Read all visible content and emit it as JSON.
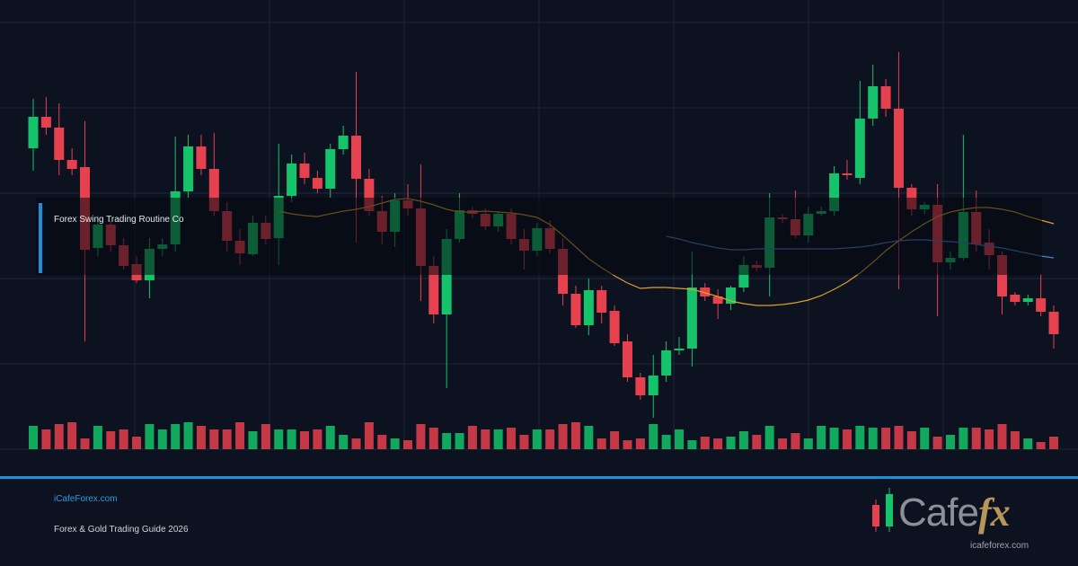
{
  "chart_data": {
    "type": "candlestick",
    "ylim": [
      0,
      500
    ],
    "y2lim": [
      0,
      40
    ],
    "grid": true,
    "up_color": "#14c36a",
    "down_color": "#e6414e",
    "open": [
      335,
      370,
      358,
      322,
      314,
      224,
      250,
      227,
      206,
      188,
      223,
      228,
      287,
      337,
      312,
      265,
      232,
      217,
      252,
      235,
      282,
      318,
      302,
      290,
      334,
      349,
      301,
      265,
      242,
      277,
      268,
      204,
      150,
      234,
      266,
      262,
      248,
      262,
      234,
      221,
      246,
      223,
      173,
      138,
      177,
      154,
      120,
      80,
      60,
      82,
      110,
      112,
      180,
      170,
      162,
      180,
      205,
      202,
      258,
      256,
      238,
      262,
      265,
      307,
      302,
      368,
      404,
      379,
      291,
      267,
      272,
      208,
      213,
      264,
      230,
      216,
      172,
      164,
      168,
      153
    ],
    "high": [
      390,
      392,
      385,
      335,
      365,
      260,
      255,
      235,
      215,
      235,
      235,
      348,
      350,
      350,
      352,
      275,
      245,
      260,
      260,
      340,
      328,
      330,
      310,
      340,
      360,
      420,
      312,
      282,
      285,
      295,
      317,
      215,
      245,
      285,
      270,
      268,
      265,
      268,
      245,
      252,
      255,
      235,
      182,
      190,
      182,
      160,
      128,
      85,
      105,
      120,
      125,
      220,
      185,
      178,
      182,
      215,
      210,
      285,
      262,
      288,
      270,
      270,
      315,
      322,
      410,
      428,
      412,
      442,
      295,
      275,
      295,
      220,
      350,
      288,
      245,
      220,
      175,
      172,
      195,
      160
    ],
    "low": [
      310,
      350,
      305,
      305,
      120,
      215,
      220,
      200,
      185,
      168,
      215,
      220,
      280,
      305,
      260,
      220,
      205,
      215,
      228,
      205,
      275,
      295,
      285,
      280,
      328,
      230,
      260,
      228,
      225,
      260,
      165,
      140,
      68,
      230,
      257,
      244,
      242,
      228,
      200,
      215,
      218,
      160,
      135,
      127,
      140,
      115,
      75,
      55,
      35,
      75,
      105,
      92,
      165,
      145,
      155,
      175,
      198,
      170,
      252,
      235,
      230,
      260,
      260,
      300,
      295,
      360,
      370,
      178,
      260,
      262,
      148,
      200,
      210,
      220,
      200,
      150,
      160,
      160,
      148,
      112
    ],
    "close": [
      370,
      358,
      322,
      312,
      222,
      250,
      227,
      204,
      188,
      223,
      228,
      287,
      337,
      312,
      265,
      232,
      218,
      252,
      234,
      282,
      318,
      302,
      290,
      334,
      349,
      301,
      265,
      242,
      277,
      268,
      204,
      150,
      234,
      266,
      262,
      248,
      262,
      234,
      221,
      246,
      223,
      173,
      138,
      177,
      152,
      118,
      80,
      60,
      82,
      110,
      112,
      180,
      170,
      162,
      180,
      205,
      202,
      258,
      256,
      238,
      262,
      265,
      307,
      305,
      368,
      404,
      379,
      291,
      267,
      272,
      208,
      213,
      264,
      228,
      216,
      170,
      164,
      168,
      153,
      128
    ],
    "volume": [
      26,
      22,
      28,
      30,
      12,
      26,
      20,
      22,
      14,
      28,
      22,
      28,
      30,
      26,
      22,
      22,
      30,
      20,
      28,
      22,
      22,
      20,
      22,
      26,
      16,
      12,
      30,
      16,
      12,
      10,
      28,
      24,
      18,
      18,
      26,
      22,
      22,
      24,
      16,
      22,
      22,
      28,
      30,
      26,
      12,
      20,
      10,
      12,
      28,
      16,
      22,
      10,
      14,
      12,
      14,
      20,
      16,
      26,
      12,
      18,
      12,
      26,
      24,
      22,
      26,
      24,
      24,
      26,
      20,
      24,
      14,
      16,
      24,
      24,
      22,
      28,
      20,
      12,
      8,
      14
    ],
    "series": [
      {
        "color": "#d9a22b",
        "values": [
          null,
          null,
          null,
          null,
          null,
          null,
          null,
          null,
          null,
          null,
          null,
          null,
          null,
          null,
          null,
          null,
          null,
          null,
          null,
          265,
          262,
          260,
          259,
          262,
          265,
          267,
          270,
          274,
          278,
          279,
          276,
          272,
          267,
          264,
          264,
          265,
          264,
          263,
          261,
          258,
          250,
          238,
          225,
          212,
          202,
          193,
          185,
          179,
          180,
          180,
          179,
          178,
          174,
          170,
          165,
          162,
          160,
          160,
          161,
          163,
          166,
          171,
          178,
          186,
          196,
          208,
          221,
          232,
          242,
          251,
          259,
          264,
          267,
          269,
          269,
          267,
          264,
          259,
          255,
          251
        ]
      },
      {
        "color": "#4a86c8",
        "values": [
          null,
          null,
          null,
          null,
          null,
          null,
          null,
          null,
          null,
          null,
          null,
          null,
          null,
          null,
          null,
          null,
          null,
          null,
          null,
          null,
          null,
          null,
          null,
          null,
          null,
          null,
          null,
          null,
          null,
          null,
          null,
          null,
          null,
          null,
          null,
          null,
          null,
          null,
          null,
          null,
          null,
          null,
          null,
          null,
          null,
          null,
          null,
          null,
          null,
          237,
          234,
          230,
          227,
          224,
          222,
          222,
          223,
          223,
          223,
          223,
          223,
          223,
          223,
          224,
          225,
          227,
          230,
          232,
          233,
          233,
          232,
          231,
          230,
          228,
          226,
          224,
          221,
          218,
          215,
          213
        ]
      }
    ]
  },
  "overlay_title": "Forex Swing Trading Routine Co",
  "footer": {
    "site": "iCafeForex.com",
    "tagline": "Forex & Gold Trading Guide 2026"
  },
  "logo": {
    "word": "Cafe",
    "suffix": "fx",
    "url": "icafeforex.com"
  }
}
